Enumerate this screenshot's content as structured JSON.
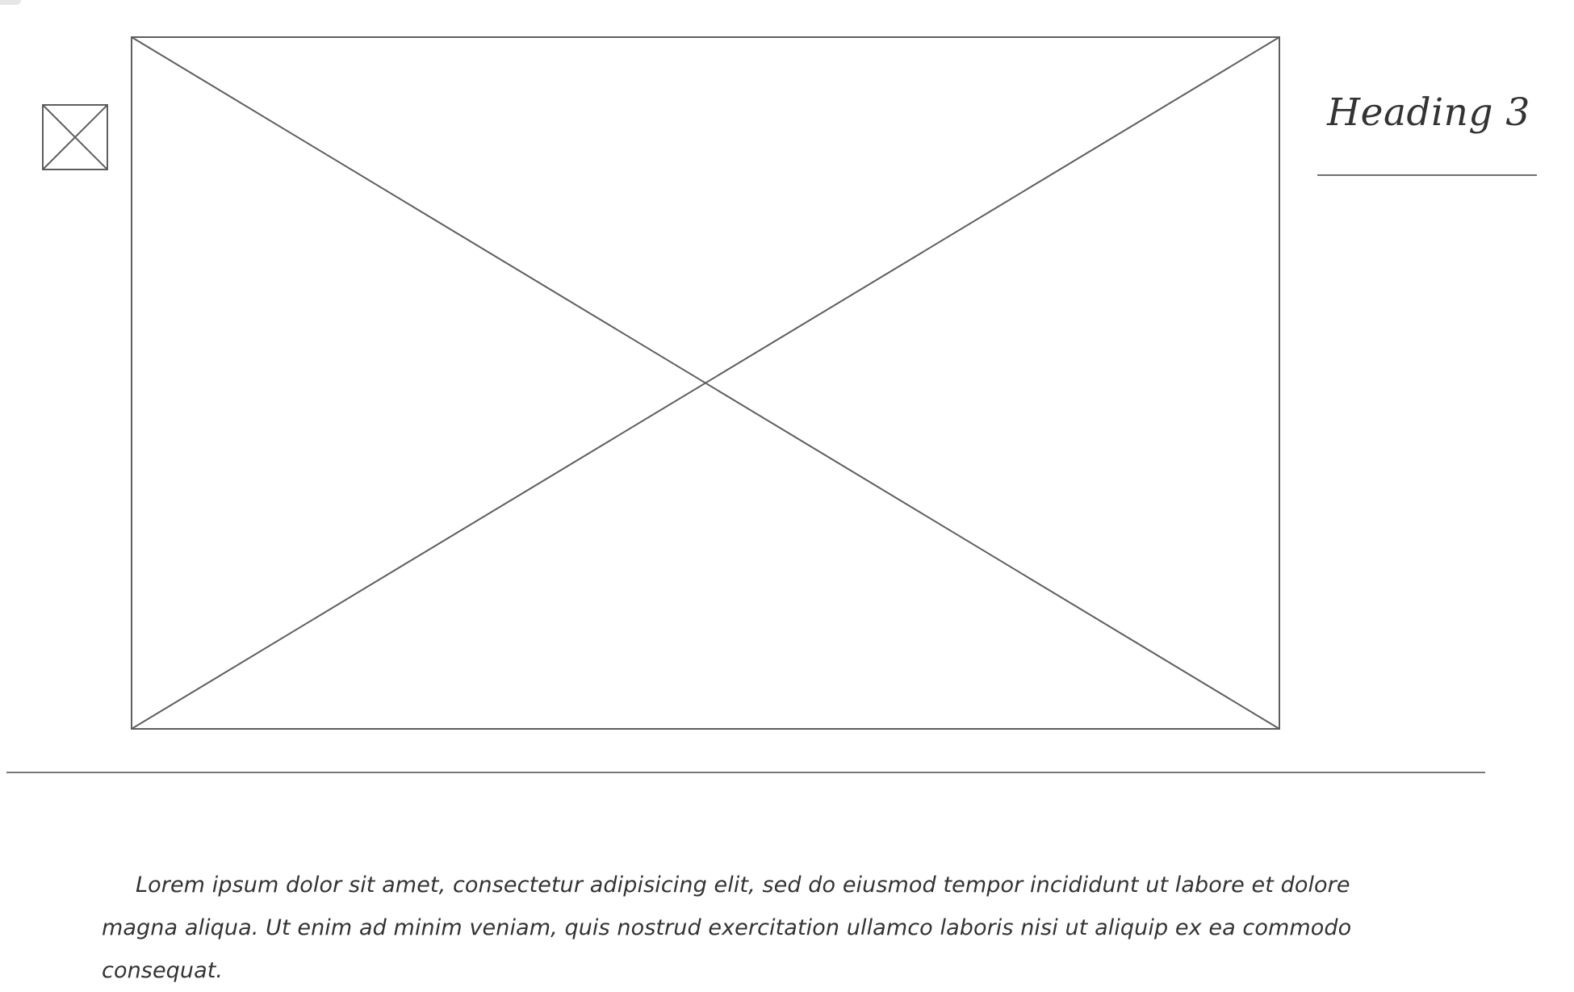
{
  "heading": {
    "text": "Heading 3"
  },
  "paragraph": {
    "text": "Lorem ipsum dolor sit amet, consectetur adipisicing elit, sed do eiusmod tempor incididunt ut labore et dolore magna aliqua. Ut enim ad minim veniam, quis nostrud exercitation ullamco laboris nisi ut aliquip ex ea commodo consequat."
  },
  "images": {
    "thumbnail_icon": "image-placeholder-icon",
    "main_icon": "image-placeholder-icon"
  },
  "colors": {
    "stroke": "#5e5e5e",
    "text": "#333333",
    "background": "#ffffff"
  }
}
